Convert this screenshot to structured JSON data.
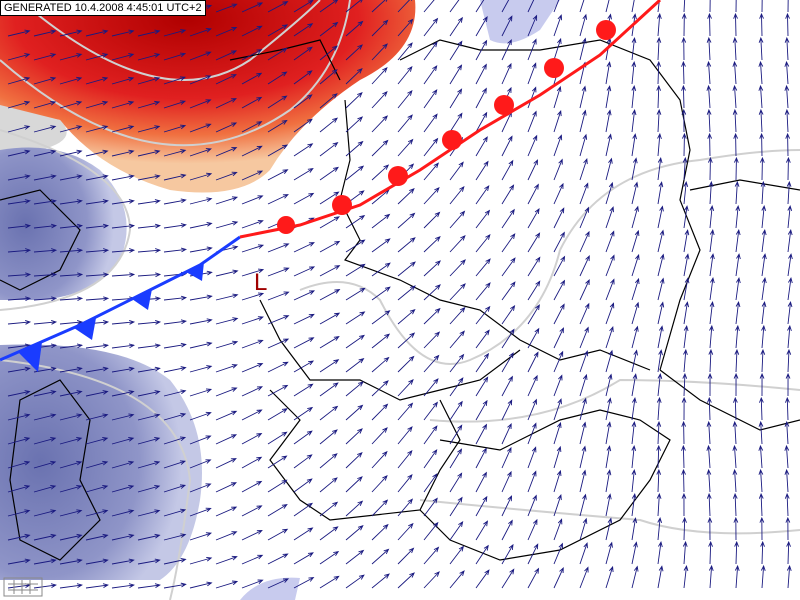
{
  "header": {
    "generated": "GENERATED 10.4.2008 4:45:01 UTC+2"
  },
  "labels": {
    "low": "L"
  }
}
